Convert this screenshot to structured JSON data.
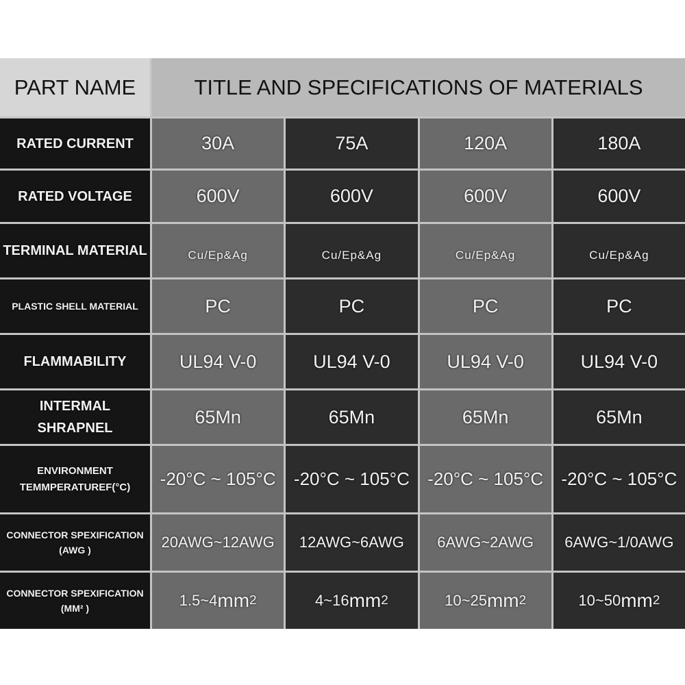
{
  "header": {
    "part_name": "PART NAME",
    "title": "TITLE AND SPECIFICATIONS OF MATERIALS"
  },
  "rows": [
    {
      "label": "RATED CURRENT",
      "values": [
        "30A",
        "75A",
        "120A",
        "180A"
      ]
    },
    {
      "label": "RATED VOLTAGE",
      "values": [
        "600V",
        "600V",
        "600V",
        "600V"
      ]
    },
    {
      "label": "TERMINAL MATERIAL",
      "values": [
        "Cu/Ep&Ag",
        "Cu/Ep&Ag",
        "Cu/Ep&Ag",
        "Cu/Ep&Ag"
      ]
    },
    {
      "label": "PLASTIC SHELL MATERIAL",
      "values": [
        "PC",
        "PC",
        "PC",
        "PC"
      ]
    },
    {
      "label": "FLAMMABILITY",
      "values": [
        "UL94 V-0",
        "UL94 V-0",
        "UL94 V-0",
        "UL94 V-0"
      ]
    },
    {
      "label": "INTERMAL SHRAPNEL",
      "values": [
        "65Mn",
        "65Mn",
        "65Mn",
        "65Mn"
      ]
    },
    {
      "label": "ENVIRONMENT",
      "label2": "TEMMPERATUREF(°C)",
      "values": [
        "-20°C ~ 105°C",
        "-20°C ~ 105°C",
        "-20°C ~ 105°C",
        "-20°C ~ 105°C"
      ]
    },
    {
      "label": "CONNECTOR SPEXIFICATION",
      "label2": "(AWG )",
      "values": [
        "20AWG~12AWG",
        "12AWG~6AWG",
        "6AWG~2AWG",
        "6AWG~1/0AWG"
      ]
    },
    {
      "label": "CONNECTOR SPEXIFICATION",
      "label2": "(MM² )",
      "values": [
        "1.5~4",
        "4~16",
        "10~25",
        "10~50"
      ],
      "unit": "mm",
      "unit_sup": "2"
    }
  ],
  "colors": {
    "label_bg": "#151515",
    "cell_light": "#6a6a6a",
    "cell_dark": "#2c2c2c",
    "header_bg": "#b9b9b9"
  }
}
